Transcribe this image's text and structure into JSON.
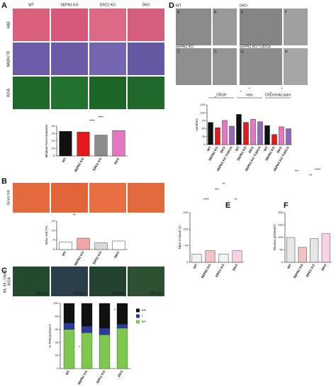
{
  "panel_a": {
    "label": "A",
    "columns": [
      "WT",
      "SEPN1 KO",
      "ERO1 KO",
      "DKO"
    ],
    "rows": [
      "H&E",
      "NADH-TR",
      "WGA"
    ]
  },
  "panel_b": {
    "label": "B",
    "row": "Sirius red"
  },
  "panel_c": {
    "label": "C",
    "row_lines": [
      "IIA, IIX, I fibers",
      "WGA"
    ],
    "scale": "100 μm"
  },
  "panel_d": {
    "label": "D",
    "images": [
      "WT",
      "DKO",
      "SEPN1 KO",
      "SEPN1 KO TUDCA"
    ],
    "image_letters": [
      "A",
      "B",
      "E",
      "F",
      "C",
      "D",
      "G",
      "H"
    ]
  },
  "panel_e": {
    "label": "E"
  },
  "panel_f": {
    "label": "F"
  },
  "chart_data": [
    {
      "type": "bar",
      "y_label": "Minimal Feret Diameter",
      "categories": [
        "WT",
        "SEPN1 KO",
        "ERO1 KO",
        "DKO"
      ],
      "values": [
        33,
        32,
        28,
        34
      ],
      "colors": [
        "#111111",
        "#e31a1c",
        "#8c8c8c",
        "#e377c2"
      ],
      "ylim": [
        0,
        40
      ],
      "yticks": [
        0,
        10,
        20,
        30,
        40
      ],
      "annotations": [
        "****",
        "****"
      ]
    },
    {
      "type": "bar",
      "y_label": "Sirius red (%)",
      "categories": [
        "WT",
        "SEPN1 KO",
        "ERO1 KO",
        "DKO"
      ],
      "values": [
        4,
        6,
        3.5,
        4.5
      ],
      "colors": [
        "#ffffff",
        "#f4a6a6",
        "#d9d9d9",
        "#ffffff"
      ],
      "ylim": [
        0,
        15
      ],
      "yticks": [
        0,
        5,
        10,
        15
      ],
      "annotations": [
        "**"
      ]
    },
    {
      "type": "stacked_bar",
      "y_label": "% FREQUENCY",
      "categories": [
        "WT",
        "SEPN1 KO",
        "ERO1 KO",
        "DKO"
      ],
      "ylim": [
        0,
        100
      ],
      "yticks": [
        0,
        20,
        40,
        60,
        80,
        100
      ],
      "series": [
        {
          "name": "IIA",
          "color": "#7ec850",
          "values": [
            60,
            55,
            52,
            62
          ]
        },
        {
          "name": "I",
          "color": "#2b3a9c",
          "values": [
            10,
            10,
            10,
            6
          ]
        },
        {
          "name": "IIX",
          "color": "#111111",
          "values": [
            30,
            35,
            38,
            32
          ]
        }
      ],
      "annotations": [
        "*",
        "*"
      ]
    },
    {
      "type": "grouped_bar",
      "y_label": "numbers",
      "groups": [
        "CRUs",
        "mito",
        "CRUs/mito pairs"
      ],
      "categories": [
        "WT",
        "SEPN1 KO",
        "DKO",
        "SEPN1 KO TUDCA",
        "WT",
        "SEPN1 KO",
        "DKO",
        "SEPN1 KO TUDCA",
        "WT",
        "SEPN1 KO",
        "DKO",
        "SEPN1 KO TUDCA"
      ],
      "values": [
        70,
        53,
        76,
        58,
        95,
        70,
        80,
        72,
        60,
        32,
        56,
        50
      ],
      "colors": [
        "#111111",
        "#e31a1c",
        "#e377c2",
        "#9467bd"
      ],
      "ylim": [
        0,
        125
      ],
      "yticks": [
        0,
        25,
        50,
        75,
        100,
        125
      ],
      "annotations": [
        "*",
        "*",
        "*",
        "*",
        "*",
        "*"
      ]
    },
    {
      "type": "bar",
      "y_label": "Time to basal (s)",
      "categories": [
        "WT",
        "SEPN1 KO",
        "ERO1 KO",
        "DKO"
      ],
      "values": [
        25,
        35,
        25,
        35
      ],
      "colors": [
        "#f2f2f2",
        "#f4c2c2",
        "#f2f2f2",
        "#fad1e6"
      ],
      "ylim": [
        0,
        150
      ],
      "yticks": [
        0,
        50,
        100,
        150
      ],
      "annotations": [
        "****",
        "***",
        "**",
        "**"
      ]
    },
    {
      "type": "bar",
      "y_label": "Tension (mN/mm²)",
      "categories": [
        "WT",
        "SEPN1 KO",
        "ERO1 KO",
        "DKO"
      ],
      "values": [
        100,
        60,
        95,
        115
      ],
      "colors": [
        "#e6e6e6",
        "#f4c2c2",
        "#e6e6e6",
        "#fad1e6"
      ],
      "ylim": [
        0,
        200
      ],
      "yticks": [
        0,
        50,
        100,
        150,
        200
      ],
      "annotations": [
        "***",
        "**",
        "****"
      ]
    }
  ]
}
